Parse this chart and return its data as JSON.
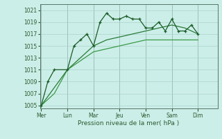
{
  "background_color": "#cceee8",
  "grid_color": "#aad4cc",
  "line_color_dark": "#1a5c28",
  "line_color_mid": "#2a7a38",
  "line_color_light": "#3a9a48",
  "xlabel": "Pression niveau de la mer( hPa )",
  "ylim": [
    1004.5,
    1022
  ],
  "yticks": [
    1005,
    1007,
    1009,
    1011,
    1013,
    1015,
    1017,
    1019,
    1021
  ],
  "xtick_labels": [
    "Mer",
    "Lun",
    "Mar",
    "Jeu",
    "Ven",
    "Sam",
    "Dim"
  ],
  "x_day_positions": [
    0,
    2,
    4,
    6,
    8,
    10,
    12
  ],
  "xlim": [
    -0.1,
    13.5
  ],
  "line1_x": [
    0,
    0.5,
    1.0,
    2.0,
    2.5,
    3.0,
    3.5,
    4.0,
    4.5,
    5.0,
    5.5,
    6.0,
    6.5,
    7.0,
    7.5,
    8.0,
    8.5,
    9.0,
    9.5,
    10.0,
    10.5,
    11.0,
    11.5,
    12.0
  ],
  "line1_y": [
    1005,
    1009,
    1011,
    1011,
    1015,
    1016,
    1017,
    1015,
    1019,
    1020.5,
    1019.5,
    1019.5,
    1020,
    1019.5,
    1019.5,
    1018,
    1018,
    1019,
    1017.5,
    1019.5,
    1017.5,
    1017.5,
    1018.5,
    1017
  ],
  "line2_x": [
    0,
    1,
    2,
    3,
    4,
    5,
    6,
    7,
    8,
    9,
    10,
    11,
    12
  ],
  "line2_y": [
    1005,
    1008,
    1011,
    1013,
    1015,
    1016,
    1016.5,
    1017,
    1017.5,
    1018,
    1018.5,
    1018,
    1017
  ],
  "line3_x": [
    0,
    1,
    2,
    3,
    4,
    5,
    6,
    7,
    8,
    9,
    10,
    11,
    12
  ],
  "line3_y": [
    1005,
    1007,
    1011,
    1012.5,
    1014,
    1014.5,
    1015,
    1015.5,
    1016,
    1016,
    1016,
    1016,
    1016
  ]
}
